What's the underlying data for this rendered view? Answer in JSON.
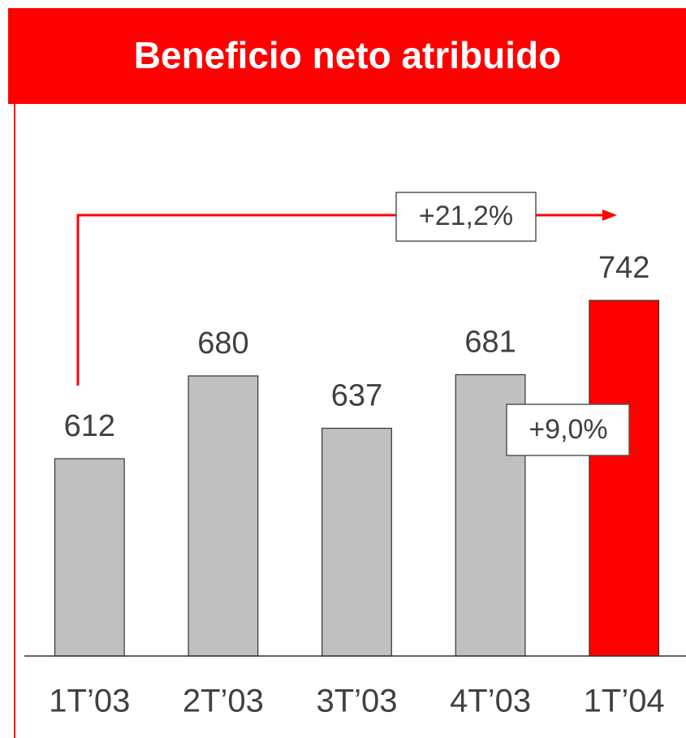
{
  "chart_data": {
    "type": "bar",
    "title": "Beneficio neto atribuido",
    "categories": [
      "1T’03",
      "2T’03",
      "3T’03",
      "4T’03",
      "1T’04"
    ],
    "values": [
      612,
      680,
      637,
      681,
      742
    ],
    "colors": [
      "#c0c0c0",
      "#c0c0c0",
      "#c0c0c0",
      "#c0c0c0",
      "#ff0000"
    ],
    "ylim": [
      450,
      750
    ],
    "annotations": [
      "+21,2%",
      "+9,0%"
    ]
  }
}
